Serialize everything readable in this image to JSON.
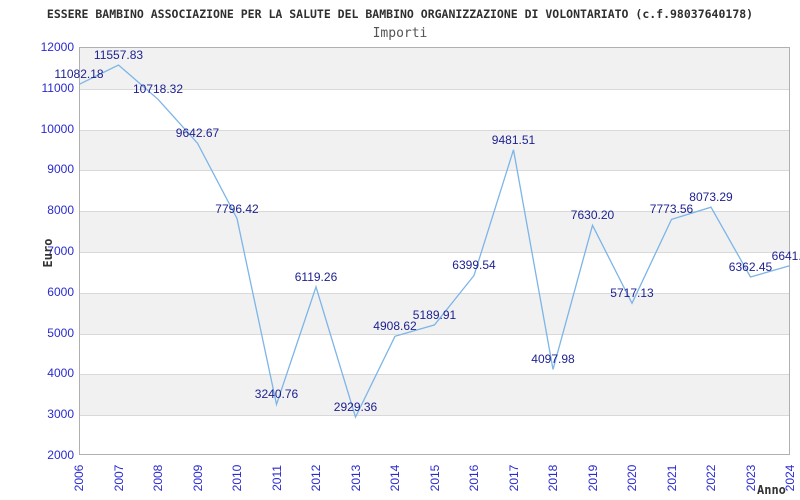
{
  "chart_data": {
    "type": "line",
    "title": "ESSERE BAMBINO ASSOCIAZIONE PER LA SALUTE DEL BAMBINO ORGANIZZAZIONE DI VOLONTARIATO (c.f.98037640178)",
    "subtitle": "Importi",
    "xlabel": "Anno",
    "ylabel": "Euro",
    "categories": [
      "2006",
      "2007",
      "2008",
      "2009",
      "2010",
      "2011",
      "2012",
      "2013",
      "2014",
      "2015",
      "2016",
      "2017",
      "2018",
      "2019",
      "2020",
      "2021",
      "2022",
      "2023",
      "2024"
    ],
    "values": [
      11082.18,
      11557.83,
      10718.32,
      9642.67,
      7796.42,
      3240.76,
      6119.26,
      2929.36,
      4908.62,
      5189.91,
      6399.54,
      9481.51,
      4097.98,
      7630.2,
      5717.13,
      7773.56,
      8073.29,
      6362.45,
      6641.1
    ],
    "point_labels": [
      "11082.18",
      "11557.83",
      "10718.32",
      "9642.67",
      "7796.42",
      "3240.76",
      "6119.26",
      "2929.36",
      "4908.62",
      "5189.91",
      "6399.54",
      "9481.51",
      "4097.98",
      "7630.20",
      "5717.13",
      "7773.56",
      "8073.29",
      "6362.45",
      "6641.1"
    ],
    "ylim": [
      2000,
      12000
    ],
    "yticks": [
      2000,
      3000,
      4000,
      5000,
      6000,
      7000,
      8000,
      9000,
      10000,
      11000,
      12000
    ],
    "legend": "none",
    "grid": "horizontal gridlines every 1000, alternating background bands",
    "colors": {
      "line": "#7cb5e8",
      "tick_label": "#2a2ad0",
      "point_label": "#1c1f8f",
      "band": "#f1f1f1",
      "gridline": "#d9d9d9",
      "frame": "#b0b0b0",
      "title": "#2f2f2f",
      "subtitle": "#555555",
      "axis_title": "#333333"
    }
  }
}
